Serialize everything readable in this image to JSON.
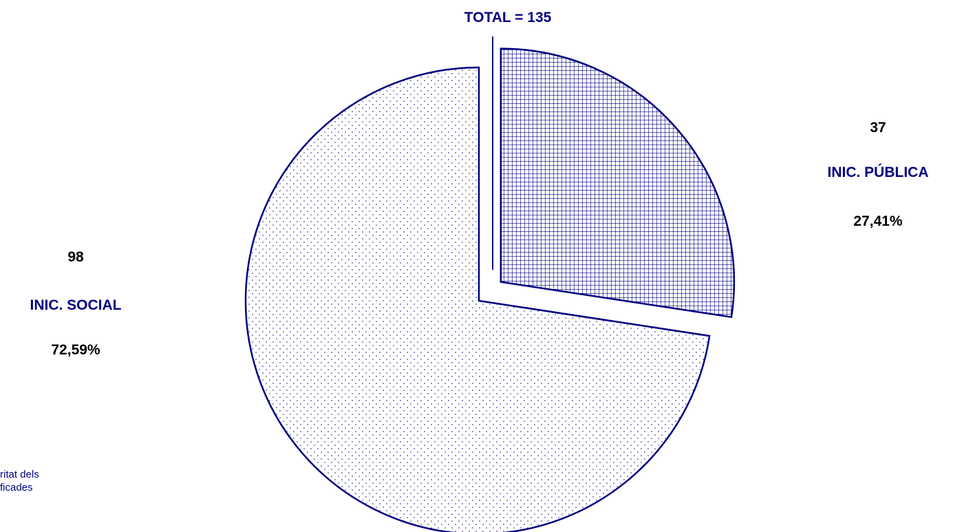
{
  "chart_data": {
    "type": "pie",
    "title": "TOTAL = 135",
    "slices": [
      {
        "label": "INIC. PÚBLICA",
        "value": 37,
        "value_label": "37",
        "percent_label": "27,41%",
        "pattern": "grid",
        "exploded": true
      },
      {
        "label": "INIC. SOCIAL",
        "value": 98,
        "value_label": "98",
        "percent_label": "72,59%",
        "pattern": "dots",
        "exploded": false
      }
    ],
    "legend": "none",
    "start_angle": "12 o'clock, clockwise"
  },
  "colors": {
    "outline": "#000080",
    "title": "#000080",
    "value_text": "#000000",
    "category_text": "#000080",
    "footnote": "#000080"
  },
  "footnote": {
    "line1": "ritat dels",
    "line2": "ficades"
  }
}
